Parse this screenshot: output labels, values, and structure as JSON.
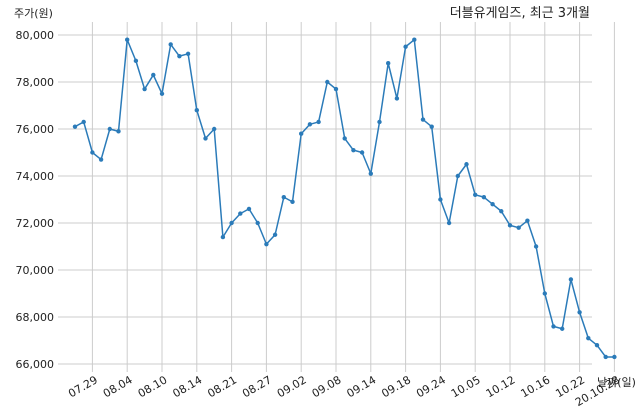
{
  "chart_data": {
    "type": "line",
    "title": "더블유게임즈, 최근 3개월",
    "ylabel": "주가(원)",
    "xlabel": "날짜(일)",
    "ylim": [
      65700,
      80300
    ],
    "yticks": [
      66000,
      68000,
      70000,
      72000,
      74000,
      76000,
      78000,
      80000
    ],
    "ytick_labels": [
      "66,000",
      "68,000",
      "70,000",
      "72,000",
      "74,000",
      "76,000",
      "78,000",
      "80,000"
    ],
    "xtick_labels": [
      "07.29",
      "08.04",
      "08.10",
      "08.14",
      "08.21",
      "08.27",
      "09.02",
      "09.08",
      "09.14",
      "09.18",
      "09.24",
      "10.05",
      "10.12",
      "10.16",
      "10.22",
      "20.10.28"
    ],
    "xtick_positions": [
      2,
      6,
      10,
      14,
      18,
      22,
      26,
      30,
      34,
      38,
      42,
      46,
      50,
      54,
      58,
      62
    ],
    "grid": true,
    "colors": {
      "line": "#2b7bb9",
      "grid": "#cccccc"
    },
    "series": [
      {
        "values": [
          76100,
          76300,
          75000,
          74700,
          76000,
          75900,
          79800,
          78900,
          77700,
          78300,
          77500,
          79600,
          79100,
          79200,
          76800,
          75600,
          76000,
          71400,
          72000,
          72400,
          72600,
          72000,
          71100,
          71500,
          73100,
          72900,
          75800,
          76200,
          76300,
          78000,
          77700,
          75600,
          75100,
          75000,
          74100,
          76300,
          78800,
          77300,
          79500,
          79800,
          76400,
          76100,
          73000,
          72000,
          74000,
          74500,
          73200,
          73100,
          72800,
          72500,
          71900,
          71800,
          72100,
          71000,
          69000,
          67600,
          67500,
          69600,
          68200,
          67100,
          66800,
          66300,
          66300
        ]
      }
    ]
  }
}
